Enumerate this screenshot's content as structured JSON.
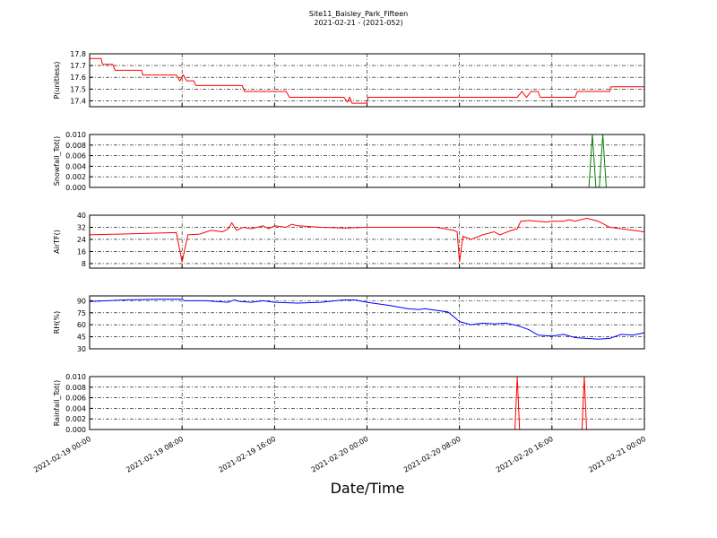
{
  "title": "Site11_Baisley_Park_Fifteen",
  "subtitle": "2021-02-21 - (2021-052)",
  "xlabel": "Date/Time",
  "chart_data": [
    {
      "type": "line",
      "ylabel": "P(unitless)",
      "color": "#ff0000",
      "ylim": [
        17.35,
        17.8
      ],
      "yticks": [
        17.4,
        17.5,
        17.6,
        17.7,
        17.8
      ],
      "x": [
        "2021-02-19 00:00",
        "2021-02-19 01:00",
        "2021-02-19 01:06",
        "2021-02-19 02:00",
        "2021-02-19 02:12",
        "2021-02-19 04:30",
        "2021-02-19 04:36",
        "2021-02-19 07:30",
        "2021-02-19 07:48",
        "2021-02-19 08:06",
        "2021-02-19 08:24",
        "2021-02-19 09:00",
        "2021-02-19 09:12",
        "2021-02-19 13:12",
        "2021-02-19 13:24",
        "2021-02-19 17:00",
        "2021-02-19 17:18",
        "2021-02-19 22:00",
        "2021-02-19 22:18",
        "2021-02-19 22:30",
        "2021-02-19 22:42",
        "2021-02-20 00:00",
        "2021-02-20 00:06",
        "2021-02-20 13:00",
        "2021-02-20 13:24",
        "2021-02-20 13:48",
        "2021-02-20 14:12",
        "2021-02-20 14:48",
        "2021-02-20 15:00",
        "2021-02-20 18:00",
        "2021-02-20 18:12",
        "2021-02-20 21:00",
        "2021-02-20 21:06",
        "2021-02-21 00:00"
      ],
      "values": [
        17.76,
        17.76,
        17.71,
        17.71,
        17.66,
        17.66,
        17.62,
        17.62,
        17.57,
        17.62,
        17.57,
        17.57,
        17.53,
        17.53,
        17.48,
        17.48,
        17.43,
        17.43,
        17.39,
        17.43,
        17.38,
        17.38,
        17.43,
        17.43,
        17.48,
        17.43,
        17.48,
        17.48,
        17.43,
        17.43,
        17.48,
        17.48,
        17.52,
        17.52
      ]
    },
    {
      "type": "line",
      "ylabel": "Snowfall_Tot()",
      "color": "#008000",
      "ylim": [
        0,
        0.01
      ],
      "yticks": [
        {
          "value": 0,
          "label": "0.000"
        },
        {
          "value": 0.002,
          "label": "0.002"
        },
        {
          "value": 0.004,
          "label": "0.004"
        },
        {
          "value": 0.006,
          "label": "0.006"
        },
        {
          "value": 0.008,
          "label": "0.008"
        },
        {
          "value": 0.01,
          "label": "0.010"
        }
      ],
      "x": [
        "2021-02-19 00:00",
        "2021-02-20 19:12",
        "2021-02-20 19:30",
        "2021-02-20 19:48",
        "2021-02-20 20:06",
        "2021-02-20 20:24",
        "2021-02-20 20:42",
        "2021-02-21 00:00"
      ],
      "values": [
        0,
        0,
        0.01,
        0,
        0,
        0.01,
        0,
        0
      ]
    },
    {
      "type": "line",
      "ylabel": "AirTF()",
      "color": "#ff0000",
      "ylim": [
        5,
        40
      ],
      "yticks": [
        8,
        16,
        24,
        32,
        40
      ],
      "x": [
        "2021-02-19 00:00",
        "2021-02-19 07:30",
        "2021-02-19 08:00",
        "2021-02-19 08:30",
        "2021-02-19 09:30",
        "2021-02-19 10:30",
        "2021-02-19 11:30",
        "2021-02-19 12:00",
        "2021-02-19 12:18",
        "2021-02-19 12:42",
        "2021-02-19 13:18",
        "2021-02-19 14:00",
        "2021-02-19 15:00",
        "2021-02-19 15:30",
        "2021-02-19 16:00",
        "2021-02-19 17:00",
        "2021-02-19 17:30",
        "2021-02-19 18:00",
        "2021-02-19 20:00",
        "2021-02-19 22:00",
        "2021-02-20 00:00",
        "2021-02-20 04:00",
        "2021-02-20 06:00",
        "2021-02-20 07:30",
        "2021-02-20 07:48",
        "2021-02-20 08:00",
        "2021-02-20 08:18",
        "2021-02-20 09:00",
        "2021-02-20 10:00",
        "2021-02-20 11:00",
        "2021-02-20 11:30",
        "2021-02-20 12:30",
        "2021-02-20 13:00",
        "2021-02-20 13:18",
        "2021-02-20 14:00",
        "2021-02-20 15:30",
        "2021-02-20 16:00",
        "2021-02-20 17:00",
        "2021-02-20 17:30",
        "2021-02-20 18:00",
        "2021-02-20 19:00",
        "2021-02-20 20:00",
        "2021-02-20 21:00",
        "2021-02-20 22:00",
        "2021-02-21 00:00"
      ],
      "values": [
        27,
        28.5,
        9,
        27,
        27.5,
        30,
        29,
        31,
        35,
        30,
        32,
        31,
        33,
        31,
        33,
        32,
        34,
        33,
        32,
        31.5,
        32,
        32,
        32,
        30,
        29,
        9,
        26,
        24,
        27,
        29,
        27,
        30,
        31,
        36,
        36.5,
        35.5,
        36,
        36,
        37,
        36,
        38,
        36,
        32,
        31,
        29
      ]
    },
    {
      "type": "line",
      "ylabel": "RH(%)",
      "color": "#0000ff",
      "ylim": [
        30,
        96
      ],
      "yticks": [
        30,
        45,
        60,
        75,
        90
      ],
      "x": [
        "2021-02-19 00:00",
        "2021-02-19 03:00",
        "2021-02-19 06:00",
        "2021-02-19 08:00",
        "2021-02-19 08:12",
        "2021-02-19 10:00",
        "2021-02-19 12:00",
        "2021-02-19 12:30",
        "2021-02-19 13:00",
        "2021-02-19 14:00",
        "2021-02-19 15:00",
        "2021-02-19 16:00",
        "2021-02-19 18:00",
        "2021-02-19 20:00",
        "2021-02-19 22:00",
        "2021-02-19 23:00",
        "2021-02-20 00:00",
        "2021-02-20 02:00",
        "2021-02-20 03:30",
        "2021-02-20 04:30",
        "2021-02-20 05:00",
        "2021-02-20 06:00",
        "2021-02-20 07:00",
        "2021-02-20 08:00",
        "2021-02-20 09:00",
        "2021-02-20 10:00",
        "2021-02-20 11:00",
        "2021-02-20 12:00",
        "2021-02-20 13:00",
        "2021-02-20 14:00",
        "2021-02-20 14:48",
        "2021-02-20 16:00",
        "2021-02-20 17:00",
        "2021-02-20 18:00",
        "2021-02-20 19:00",
        "2021-02-20 20:00",
        "2021-02-20 21:00",
        "2021-02-20 22:00",
        "2021-02-20 23:00",
        "2021-02-21 00:00"
      ],
      "values": [
        89,
        91,
        92,
        92,
        90,
        90,
        88,
        91,
        89,
        88,
        90,
        88,
        87,
        88,
        91,
        91,
        88,
        84,
        80,
        79,
        80,
        78,
        76,
        64,
        60,
        62,
        61,
        62,
        59,
        54,
        47,
        46,
        48,
        44,
        43,
        42,
        43,
        48,
        47,
        50
      ]
    },
    {
      "type": "line",
      "ylabel": "Rainfall_Tot()",
      "color": "#ff0000",
      "ylim": [
        0,
        0.01
      ],
      "yticks": [
        {
          "value": 0,
          "label": "0.000"
        },
        {
          "value": 0.002,
          "label": "0.002"
        },
        {
          "value": 0.004,
          "label": "0.004"
        },
        {
          "value": 0.006,
          "label": "0.006"
        },
        {
          "value": 0.008,
          "label": "0.008"
        },
        {
          "value": 0.01,
          "label": "0.010"
        }
      ],
      "x": [
        "2021-02-19 00:00",
        "2021-02-20 12:48",
        "2021-02-20 13:00",
        "2021-02-20 13:12",
        "2021-02-20 18:36",
        "2021-02-20 18:48",
        "2021-02-20 19:00",
        "2021-02-21 00:00"
      ],
      "values": [
        0,
        0,
        0.01,
        0,
        0,
        0.01,
        0,
        0
      ],
      "xlim": [
        "2021-02-19 00:00",
        "2021-02-21 00:00"
      ],
      "xticks": [
        "2021-02-19 00:00",
        "2021-02-19 08:00",
        "2021-02-19 16:00",
        "2021-02-20 00:00",
        "2021-02-20 08:00",
        "2021-02-20 16:00",
        "2021-02-21 00:00"
      ]
    }
  ]
}
